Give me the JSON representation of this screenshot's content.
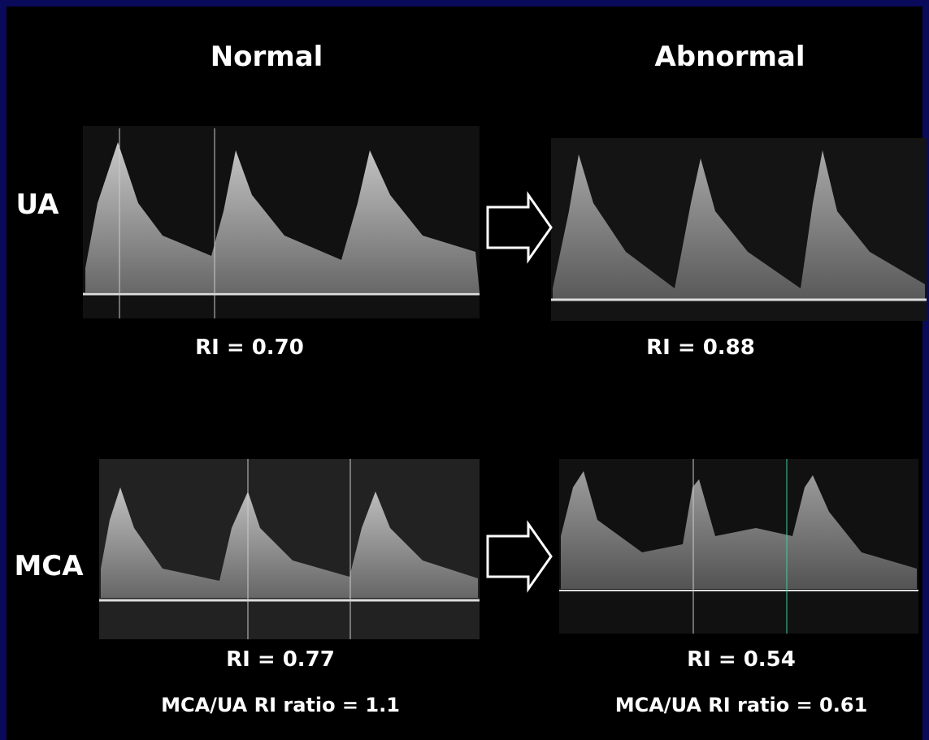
{
  "columns": [
    "Normal",
    "Abnormal"
  ],
  "rows": [
    {
      "label": "UA",
      "normal": {
        "ri": "RI = 0.70"
      },
      "abnormal": {
        "ri": "RI = 0.88"
      }
    },
    {
      "label": "MCA",
      "normal": {
        "ri": "RI = 0.77",
        "ratio": "MCA/UA RI ratio = 1.1"
      },
      "abnormal": {
        "ri": "RI = 0.54",
        "ratio": "MCA/UA RI ratio = 0.61"
      }
    }
  ]
}
